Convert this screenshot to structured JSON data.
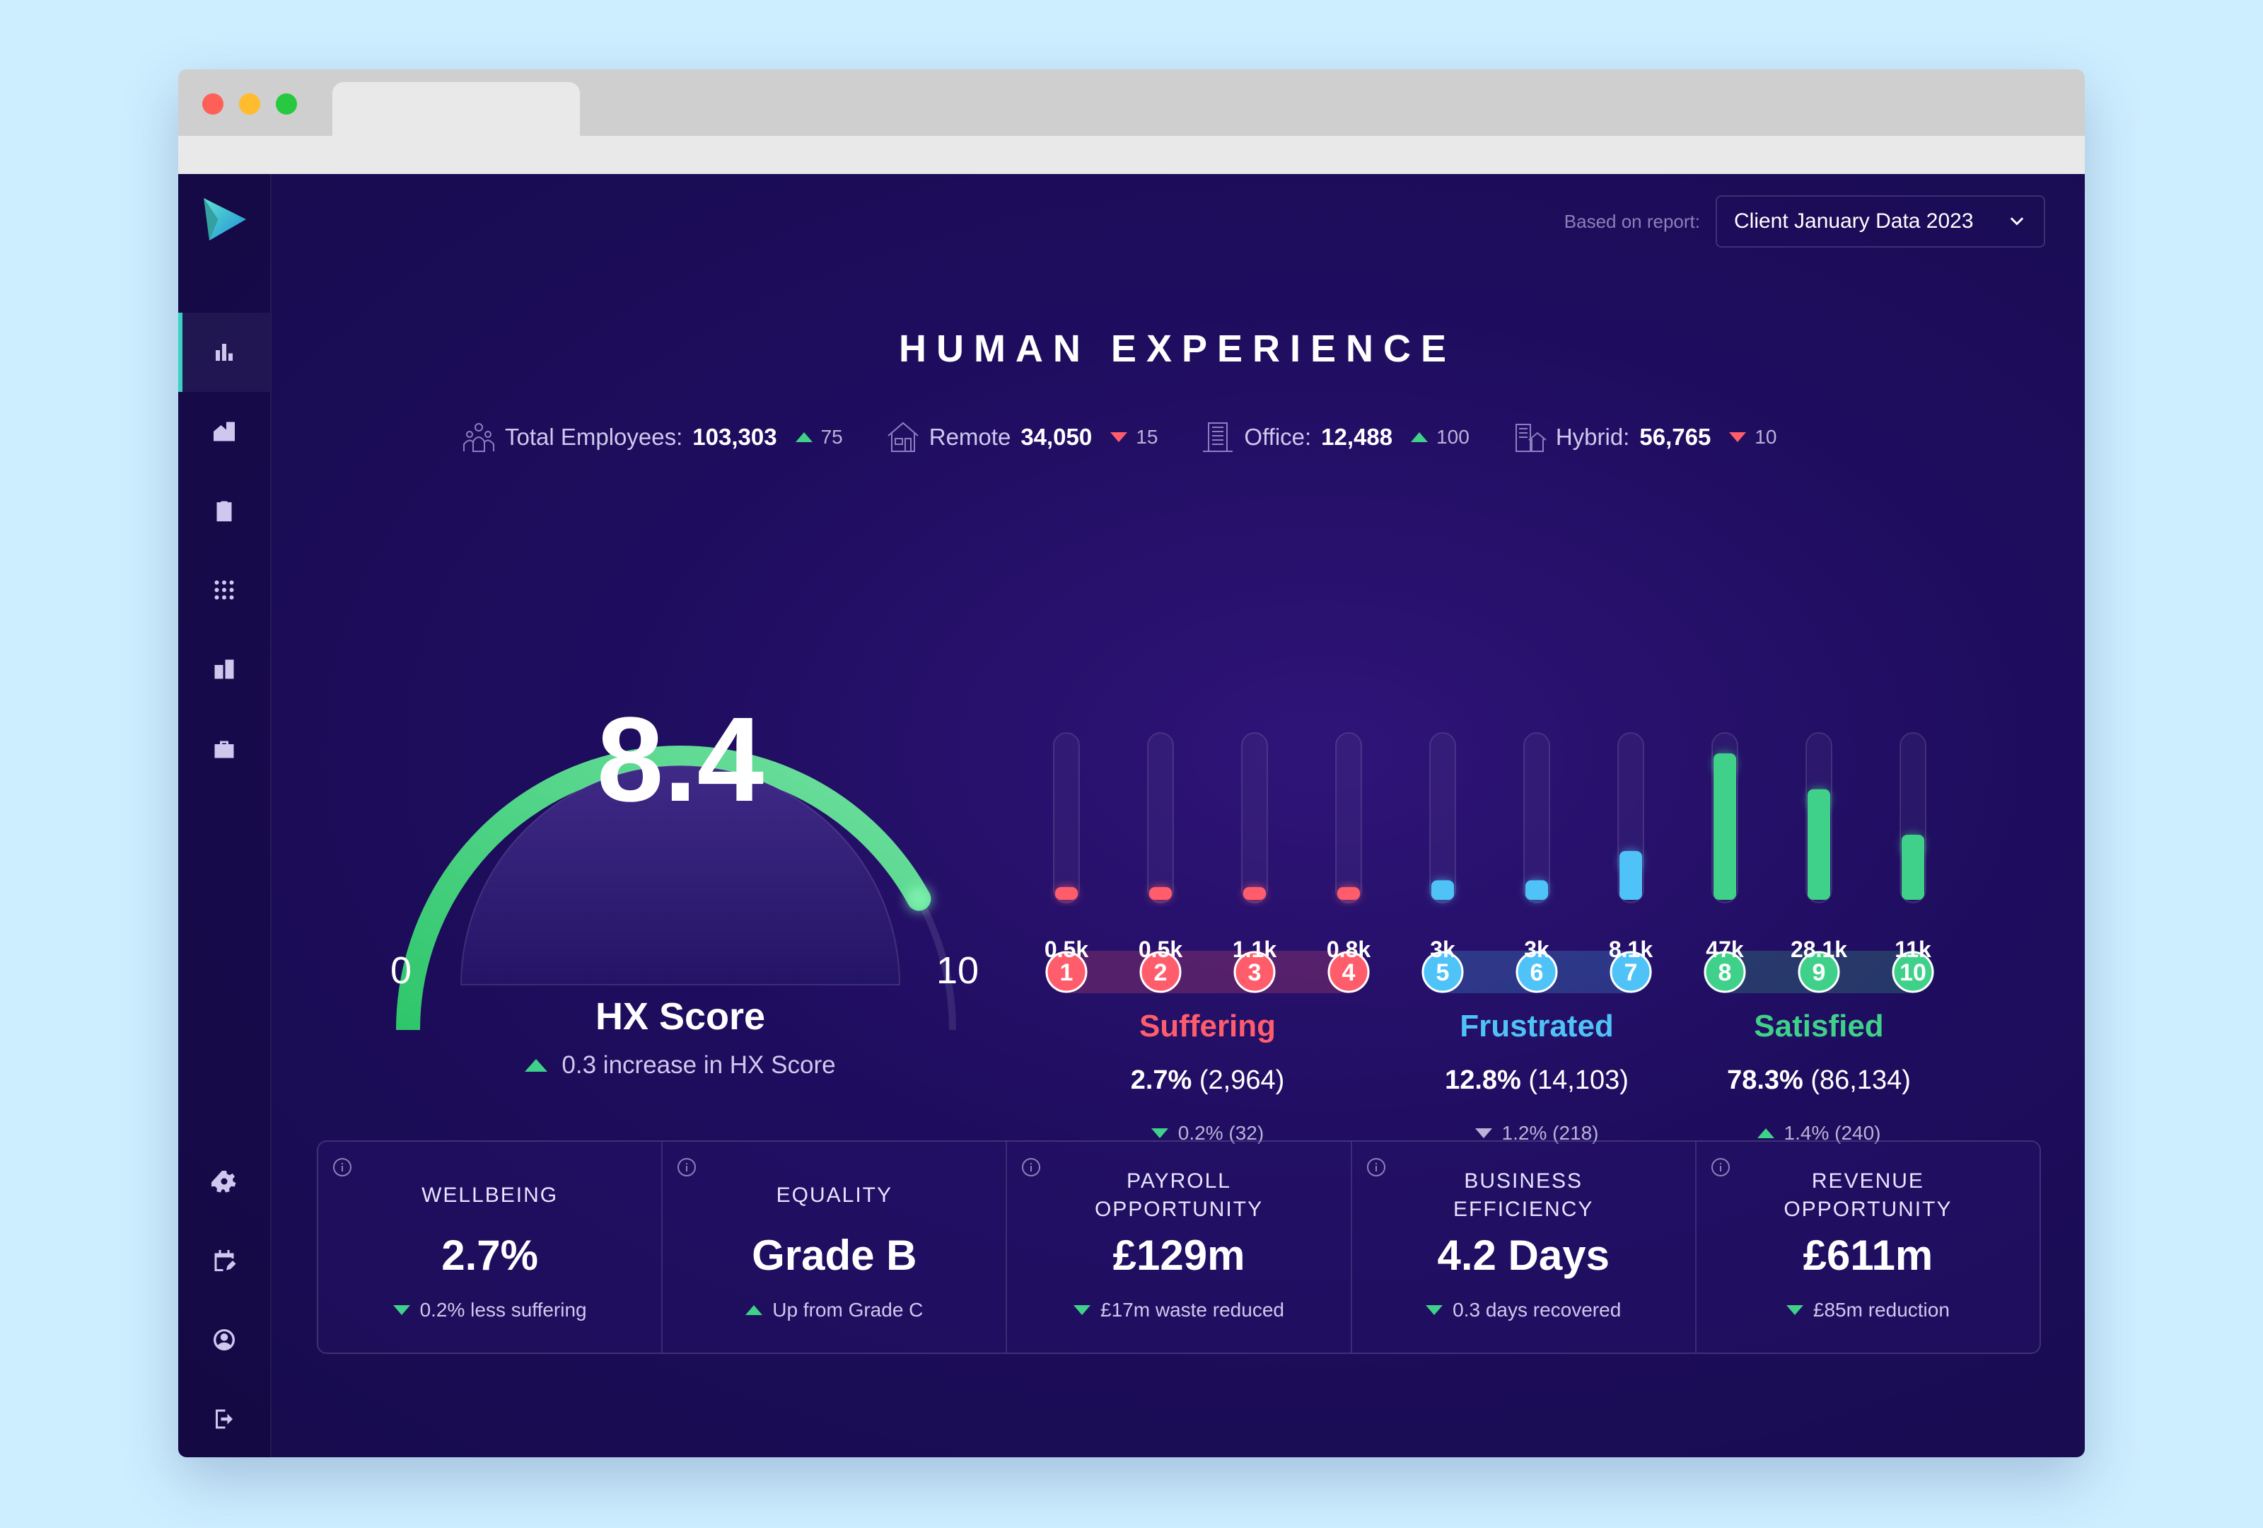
{
  "report": {
    "label": "Based on report:",
    "selected": "Client January Data 2023"
  },
  "title": "HUMAN EXPERIENCE",
  "stats": [
    {
      "label": "Total Employees:",
      "value": "103,303",
      "delta": "75",
      "direction": "up"
    },
    {
      "label": "Remote",
      "value": "34,050",
      "delta": "15",
      "direction": "down"
    },
    {
      "label": "Office:",
      "value": "12,488",
      "delta": "100",
      "direction": "up"
    },
    {
      "label": "Hybrid:",
      "value": "56,765",
      "delta": "10",
      "direction": "down"
    }
  ],
  "gauge": {
    "score": "8.4",
    "value": 8.4,
    "min": "0",
    "max": "10",
    "title": "HX Score",
    "delta_text": "0.3 increase in HX Score"
  },
  "colors": {
    "suffering": "#ff5d6c",
    "frustrated": "#4fc3f7",
    "satisfied": "#3fd18a"
  },
  "bars": [
    {
      "num": "1",
      "label": "0.5k",
      "level": 0.03,
      "group": "suffering"
    },
    {
      "num": "2",
      "label": "0.5k",
      "level": 0.03,
      "group": "suffering"
    },
    {
      "num": "3",
      "label": "1.1k",
      "level": 0.06,
      "group": "suffering"
    },
    {
      "num": "4",
      "label": "0.8k",
      "level": 0.05,
      "group": "suffering"
    },
    {
      "num": "5",
      "label": "3k",
      "level": 0.12,
      "group": "frustrated"
    },
    {
      "num": "6",
      "label": "3k",
      "level": 0.12,
      "group": "frustrated"
    },
    {
      "num": "7",
      "label": "8.1k",
      "level": 0.3,
      "group": "frustrated"
    },
    {
      "num": "8",
      "label": "47k",
      "level": 0.9,
      "group": "satisfied"
    },
    {
      "num": "9",
      "label": "28.1k",
      "level": 0.68,
      "group": "satisfied"
    },
    {
      "num": "10",
      "label": "11k",
      "level": 0.4,
      "group": "satisfied"
    }
  ],
  "groups": [
    {
      "id": "suffering",
      "title": "Suffering",
      "pct": "2.7%",
      "count": "(2,964)",
      "delta": "0.2% (32)",
      "direction": "down-good"
    },
    {
      "id": "frustrated",
      "title": "Frustrated",
      "pct": "12.8%",
      "count": "(14,103)",
      "delta": "1.2% (218)",
      "direction": "down-neutral"
    },
    {
      "id": "satisfied",
      "title": "Satisfied",
      "pct": "78.3%",
      "count": "(86,134)",
      "delta": "1.4% (240)",
      "direction": "up"
    }
  ],
  "cards": [
    {
      "title": [
        "WELLBEING"
      ],
      "value": "2.7%",
      "delta": "0.2% less suffering",
      "direction": "down"
    },
    {
      "title": [
        "EQUALITY"
      ],
      "value": "Grade B",
      "delta": "Up from Grade C",
      "direction": "up"
    },
    {
      "title": [
        "PAYROLL",
        "OPPORTUNITY"
      ],
      "value": "£129m",
      "delta": "£17m waste reduced",
      "direction": "down"
    },
    {
      "title": [
        "BUSINESS",
        "EFFICIENCY"
      ],
      "value": "4.2 Days",
      "delta": "0.3 days recovered",
      "direction": "down"
    },
    {
      "title": [
        "REVENUE",
        "OPPORTUNITY"
      ],
      "value": "£611m",
      "delta": "£85m reduction",
      "direction": "down"
    }
  ],
  "nav_icons": [
    "bar-chart-icon",
    "building-home-icon",
    "clipboard-icon",
    "grid-icon",
    "office-building-icon",
    "briefcase-icon",
    "gear-icon",
    "calendar-edit-icon",
    "user-circle-icon",
    "logout-icon"
  ]
}
